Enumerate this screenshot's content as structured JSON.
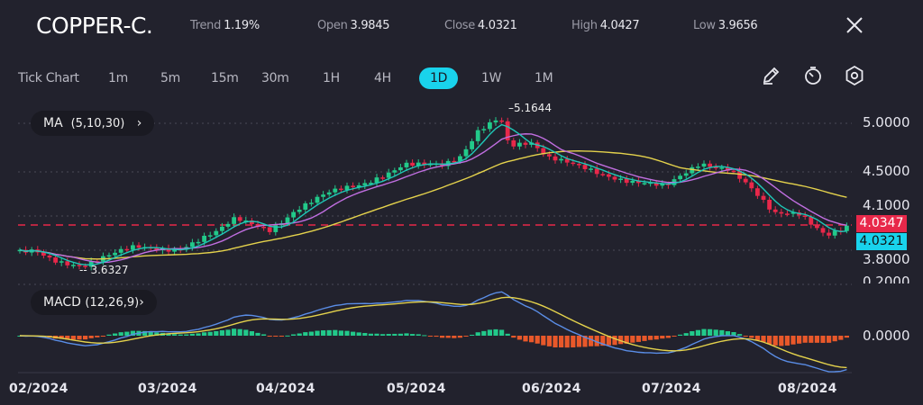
{
  "header": {
    "symbol": "COPPER-C.",
    "trend_label": "Trend",
    "trend_value": "1.19%",
    "open_label": "Open",
    "open_value": "3.9845",
    "close_label": "Close",
    "close_value": "4.0321",
    "high_label": "High",
    "high_value": "4.0427",
    "low_label": "Low",
    "low_value": "3.9656",
    "close_icon": "close-x-icon"
  },
  "timeframes": [
    {
      "label": "Tick Chart"
    },
    {
      "label": "1m"
    },
    {
      "label": "5m"
    },
    {
      "label": "15m"
    },
    {
      "label": "30m"
    },
    {
      "label": "1H"
    },
    {
      "label": "4H"
    },
    {
      "label": "1D",
      "active": true
    },
    {
      "label": "1W"
    },
    {
      "label": "1M"
    }
  ],
  "tools": [
    "pencil-icon",
    "timer-icon",
    "settings-hexagon-icon"
  ],
  "indicators": {
    "ma_label": "MA",
    "ma_params": "(5,10,30)",
    "macd_label": "MACD",
    "macd_params": "(12,26,9)"
  },
  "colors": {
    "up": "#22c98a",
    "down": "#e8284a",
    "ma5": "#1fc8b8",
    "ma10": "#c06ee0",
    "ma30": "#e4d24c",
    "macd": "#5a8de6",
    "signal": "#e4d24c",
    "hist_up": "#22c98a",
    "hist_down": "#e8582a",
    "accent": "#19d3ec"
  },
  "chart_data": {
    "type": "candlestick",
    "price_axis_ticks": [
      "5.0000",
      "4.5000",
      "4.1000",
      "3.8000"
    ],
    "macd_axis_ticks": [
      "0.2000",
      "0.0000"
    ],
    "x_tick_labels": [
      "02/2024",
      "03/2024",
      "04/2024",
      "05/2024",
      "06/2024",
      "07/2024",
      "08/2024"
    ],
    "high_marker": "5.1644",
    "low_marker": "3.6327",
    "last_price": "4.0347",
    "close_price": "4.0321",
    "approx_closes": [
      [
        "2024-02-01",
        3.76
      ],
      [
        "2024-02-05",
        3.79
      ],
      [
        "2024-02-09",
        3.72
      ],
      [
        "2024-02-16",
        3.65
      ],
      [
        "2024-02-22",
        3.73
      ],
      [
        "2024-02-28",
        3.82
      ],
      [
        "2024-03-09",
        3.82
      ],
      [
        "2024-03-18",
        3.96
      ],
      [
        "2024-03-22",
        4.08
      ],
      [
        "2024-03-30",
        4.0
      ],
      [
        "2024-04-05",
        4.19
      ],
      [
        "2024-04-12",
        4.32
      ],
      [
        "2024-04-20",
        4.41
      ],
      [
        "2024-04-30",
        4.63
      ],
      [
        "2024-05-09",
        4.58
      ],
      [
        "2024-05-13",
        4.67
      ],
      [
        "2024-05-17",
        4.94
      ],
      [
        "2024-05-22",
        5.09
      ],
      [
        "2024-05-24",
        4.81
      ],
      [
        "2024-05-29",
        4.81
      ],
      [
        "2024-06-02",
        4.65
      ],
      [
        "2024-06-11",
        4.58
      ],
      [
        "2024-06-21",
        4.45
      ],
      [
        "2024-06-29",
        4.38
      ],
      [
        "2024-07-07",
        4.63
      ],
      [
        "2024-07-14",
        4.58
      ],
      [
        "2024-07-18",
        4.41
      ],
      [
        "2024-07-24",
        4.12
      ],
      [
        "2024-07-30",
        4.14
      ],
      [
        "2024-08-05",
        3.96
      ],
      [
        "2024-08-10",
        4.03
      ]
    ]
  }
}
